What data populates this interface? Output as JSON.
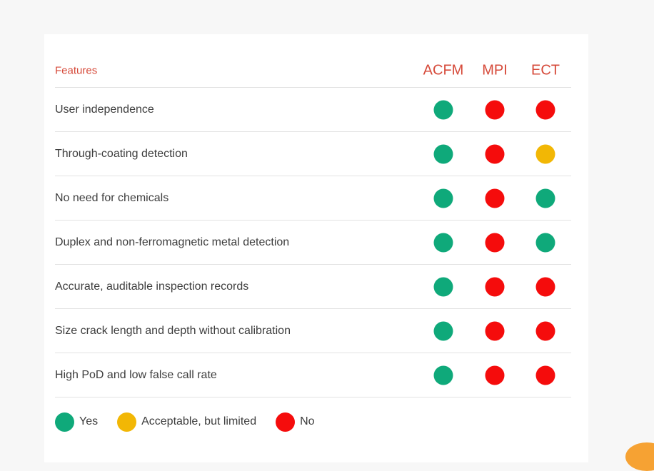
{
  "colors": {
    "yes": "#0fa97a",
    "limited": "#f2b705",
    "no": "#f50c0c"
  },
  "header": {
    "features_label": "Features",
    "columns": [
      "ACFM",
      "MPI",
      "ECT"
    ]
  },
  "rows": [
    {
      "feature": "User independence",
      "values": [
        "yes",
        "no",
        "no"
      ]
    },
    {
      "feature": "Through-coating detection",
      "values": [
        "yes",
        "no",
        "limited"
      ]
    },
    {
      "feature": "No need for chemicals",
      "values": [
        "yes",
        "no",
        "yes"
      ]
    },
    {
      "feature": "Duplex and non-ferromagnetic metal detection",
      "values": [
        "yes",
        "no",
        "yes"
      ]
    },
    {
      "feature": "Accurate, auditable inspection records",
      "values": [
        "yes",
        "no",
        "no"
      ]
    },
    {
      "feature": "Size crack length and depth without calibration",
      "values": [
        "yes",
        "no",
        "no"
      ]
    },
    {
      "feature": "High PoD and low false call rate",
      "values": [
        "yes",
        "no",
        "no"
      ]
    }
  ],
  "legend": [
    {
      "key": "yes",
      "label": "Yes"
    },
    {
      "key": "limited",
      "label": "Acceptable, but limited"
    },
    {
      "key": "no",
      "label": "No"
    }
  ]
}
